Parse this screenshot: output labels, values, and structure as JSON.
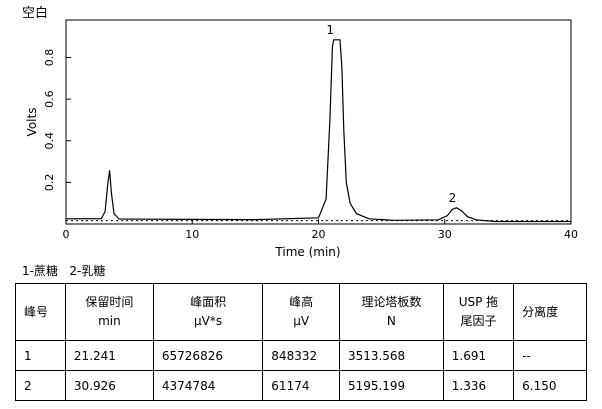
{
  "chart_data": {
    "type": "line",
    "title": "空白",
    "xlabel": "Time (min)",
    "ylabel": "Volts",
    "xlim": [
      0,
      40
    ],
    "ylim": [
      0,
      0.98
    ],
    "xticks": [
      0,
      10,
      20,
      30,
      40
    ],
    "yticks": [
      0.2,
      0.4,
      0.6,
      0.8
    ],
    "ytick_labels": [
      "0.2",
      "0.4",
      "0.6",
      "0.8"
    ],
    "grid": false,
    "baseline_y": 0.016,
    "series": [
      {
        "x": [
          0,
          2.8,
          3.1,
          3.3,
          3.45,
          3.6,
          3.8,
          4.2,
          10,
          15,
          20,
          20.6,
          20.9,
          21.1,
          21.2,
          21.5,
          21.7,
          21.85,
          22.0,
          22.2,
          22.5,
          23.0,
          24,
          26,
          29.5,
          30.2,
          30.6,
          30.926,
          31.3,
          31.8,
          32.5,
          34,
          40
        ],
        "y": [
          0.025,
          0.026,
          0.06,
          0.19,
          0.258,
          0.15,
          0.05,
          0.024,
          0.022,
          0.021,
          0.03,
          0.12,
          0.5,
          0.85,
          0.885,
          0.885,
          0.885,
          0.75,
          0.45,
          0.2,
          0.1,
          0.05,
          0.025,
          0.018,
          0.02,
          0.04,
          0.07,
          0.078,
          0.065,
          0.035,
          0.02,
          0.012,
          0.012
        ]
      }
    ],
    "peaks": [
      {
        "label": "1",
        "x": 21.241,
        "y": 0.885
      },
      {
        "label": "2",
        "x": 30.926,
        "y": 0.078
      }
    ]
  },
  "peak_legend": "1-蔗糖   2-乳糖",
  "table": {
    "headers": [
      [
        "峰号"
      ],
      [
        "保留时间",
        "min"
      ],
      [
        "峰面积",
        "μV*s"
      ],
      [
        "峰高",
        "μV"
      ],
      [
        "理论塔板数",
        "N"
      ],
      [
        "USP 拖",
        "尾因子"
      ],
      [
        "分离度"
      ]
    ],
    "rows": [
      [
        "1",
        "21.241",
        "65726826",
        "848332",
        "3513.568",
        "1.691",
        "--"
      ],
      [
        "2",
        "30.926",
        "4374784",
        "61174",
        "5195.199",
        "1.336",
        "6.150"
      ]
    ]
  }
}
